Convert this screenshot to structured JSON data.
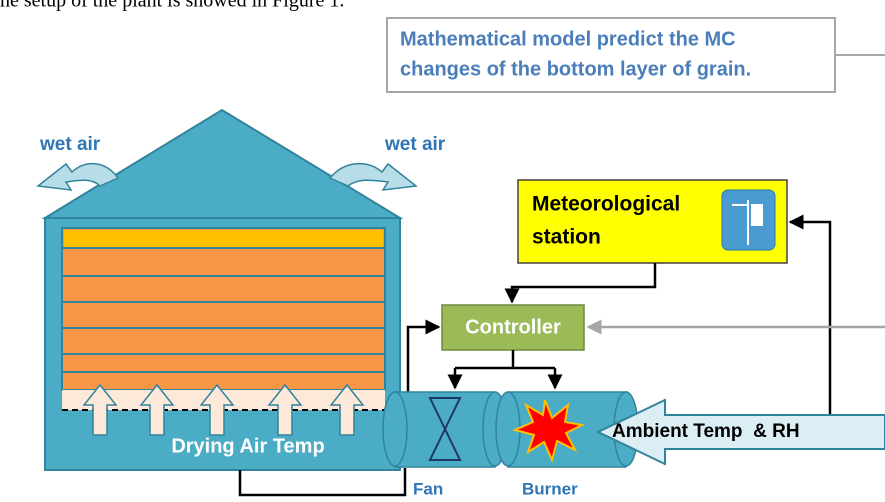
{
  "header": {
    "text": "he setup of the plant is showed in Figure 1."
  },
  "callout": {
    "lines": [
      "Mathematical model predict the MC",
      "changes of the bottom layer of grain."
    ]
  },
  "labels": {
    "wet_air_left": "wet air",
    "wet_air_right": "wet air",
    "meteorological_station": [
      "Meteorological",
      "station"
    ],
    "controller": "Controller",
    "drying_air_temp": "Drying Air Temp",
    "ambient": "Ambient Temp  & RH",
    "fan": "Fan",
    "burner": "Burner"
  }
}
